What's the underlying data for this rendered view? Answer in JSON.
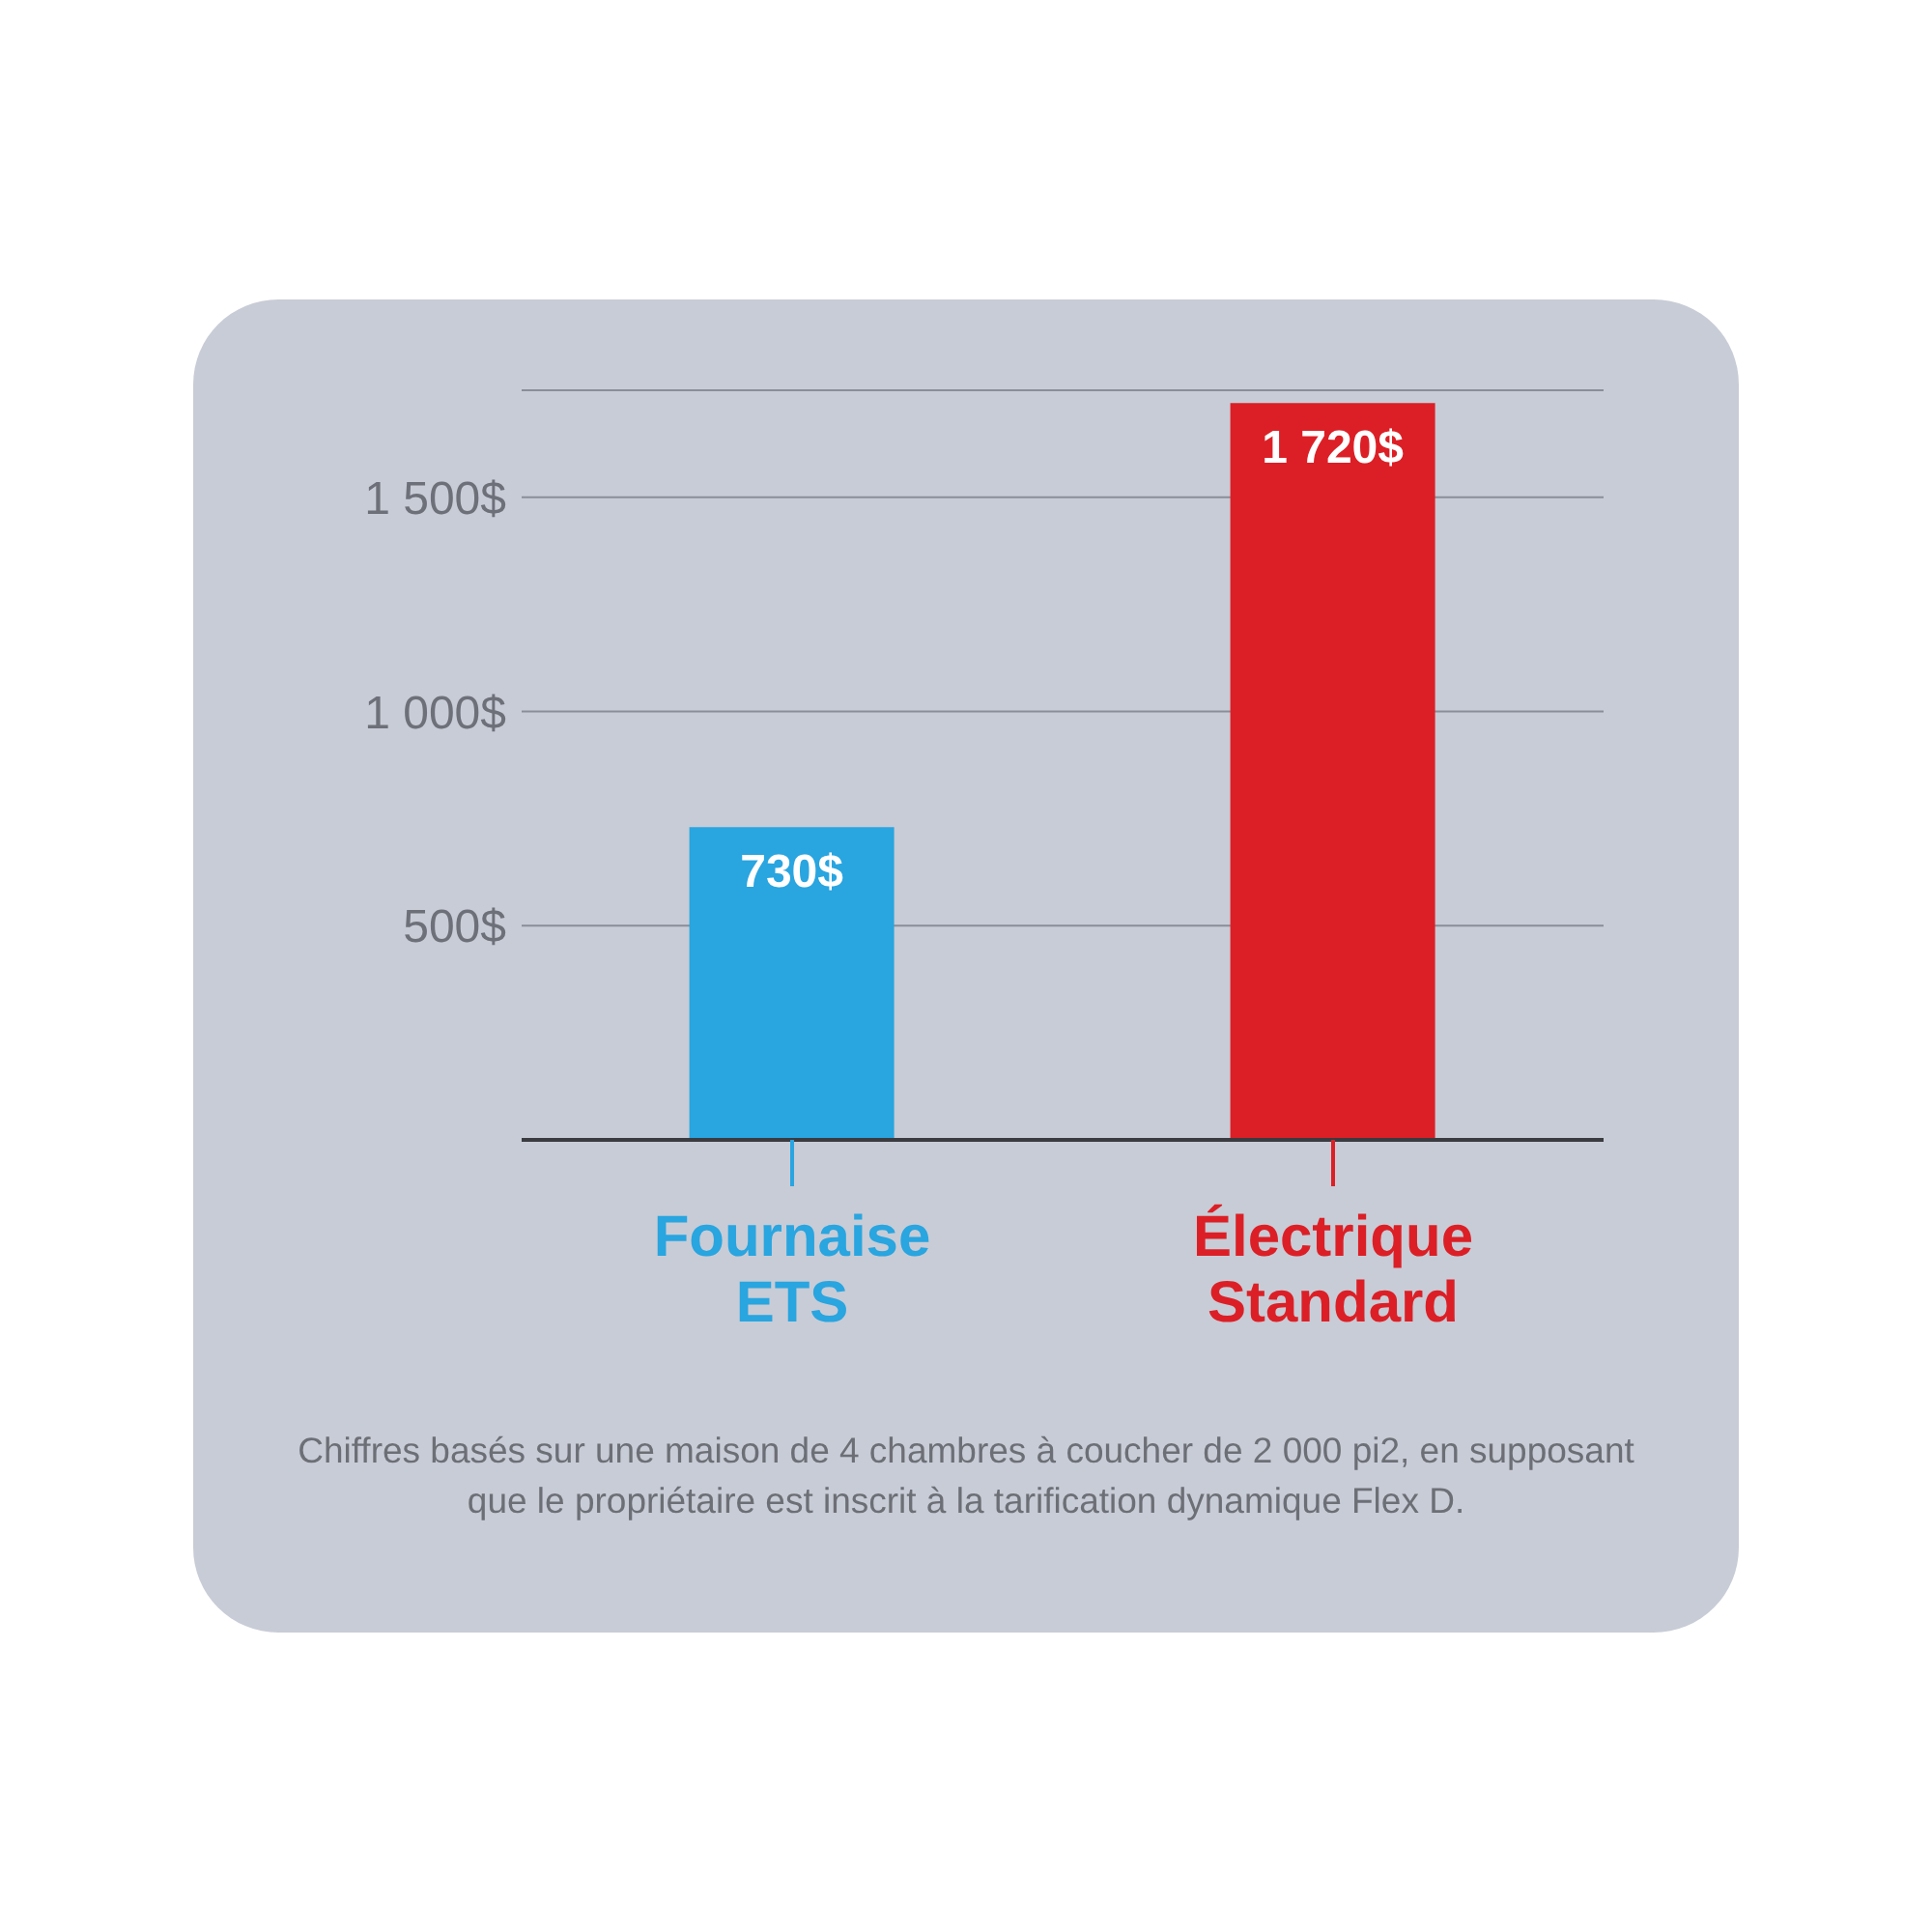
{
  "chart_data": {
    "type": "bar",
    "categories": [
      "Fournaise ETS",
      "Électrique Standard"
    ],
    "values": [
      730,
      1720
    ],
    "colors": [
      "#29a5e0",
      "#dc1f26"
    ],
    "value_labels": [
      "730$",
      "1 720$"
    ],
    "ylim": [
      0,
      1750
    ],
    "yticks": [
      {
        "value": 500,
        "label": "500$"
      },
      {
        "value": 1000,
        "label": "1 000$"
      },
      {
        "value": 1500,
        "label": "1 500$"
      }
    ],
    "grid": "y",
    "annotations": [
      "Chiffres basés sur une maison de 4 chambres à coucher de 2 000 pi2, en supposant que le propriétaire est inscrit à la tarification dynamique Flex D."
    ]
  }
}
